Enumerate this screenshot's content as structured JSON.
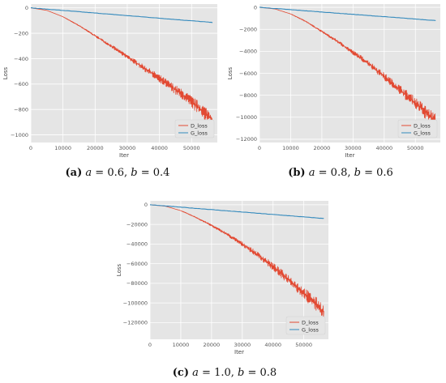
{
  "colors": {
    "d_loss": "#e24a33",
    "g_loss": "#348abd",
    "plot_bg": "#e5e5e5",
    "grid": "#ffffff"
  },
  "captions": [
    {
      "tag": "(a)",
      "a": "a",
      "a_val": "0.6",
      "b": "b",
      "b_val": "0.4"
    },
    {
      "tag": "(b)",
      "a": "a",
      "a_val": "0.8",
      "b": "b",
      "b_val": "0.6"
    },
    {
      "tag": "(c)",
      "a": "a",
      "a_val": "1.0",
      "b": "b",
      "b_val": "0.8"
    }
  ],
  "chart_data": [
    {
      "type": "line",
      "xlabel": "Iter",
      "ylabel": "Loss",
      "xlim": [
        0,
        58000
      ],
      "ylim": [
        -1060,
        30
      ],
      "xticks": [
        0,
        10000,
        20000,
        30000,
        40000,
        50000
      ],
      "yticks": [
        0,
        -200,
        -400,
        -600,
        -800,
        -1000
      ],
      "legend": "lower-right",
      "series": [
        {
          "name": "D_loss",
          "x": [
            0,
            5000,
            10000,
            15000,
            20000,
            25000,
            30000,
            35000,
            40000,
            45000,
            50000,
            55000,
            56500
          ],
          "values": [
            0,
            -20,
            -70,
            -140,
            -220,
            -300,
            -385,
            -470,
            -555,
            -645,
            -740,
            -845,
            -880
          ],
          "noisy": true
        },
        {
          "name": "G_loss",
          "x": [
            0,
            56500
          ],
          "values": [
            0,
            -115
          ],
          "noisy": false
        }
      ]
    },
    {
      "type": "line",
      "xlabel": "Iter",
      "ylabel": "Loss",
      "xlim": [
        0,
        58000
      ],
      "ylim": [
        -12300,
        300
      ],
      "xticks": [
        0,
        10000,
        20000,
        30000,
        40000,
        50000
      ],
      "yticks": [
        0,
        -2000,
        -4000,
        -6000,
        -8000,
        -10000,
        -12000
      ],
      "legend": "lower-right",
      "series": [
        {
          "name": "D_loss",
          "x": [
            0,
            5000,
            10000,
            15000,
            20000,
            25000,
            30000,
            35000,
            40000,
            45000,
            50000,
            55000,
            56500
          ],
          "values": [
            0,
            -150,
            -600,
            -1300,
            -2200,
            -3100,
            -4100,
            -5100,
            -6300,
            -7500,
            -8700,
            -10000,
            -10400
          ],
          "noisy": true
        },
        {
          "name": "G_loss",
          "x": [
            0,
            56500
          ],
          "values": [
            0,
            -1200
          ],
          "noisy": false
        }
      ]
    },
    {
      "type": "line",
      "xlabel": "Iter",
      "ylabel": "Loss",
      "xlim": [
        0,
        58000
      ],
      "ylim": [
        -137000,
        4000
      ],
      "xticks": [
        0,
        10000,
        20000,
        30000,
        40000,
        50000
      ],
      "yticks": [
        0,
        -20000,
        -40000,
        -60000,
        -80000,
        -100000,
        -120000
      ],
      "legend": "lower-right",
      "series": [
        {
          "name": "D_loss",
          "x": [
            0,
            5000,
            10000,
            15000,
            20000,
            25000,
            30000,
            35000,
            40000,
            45000,
            50000,
            55000,
            56500
          ],
          "values": [
            0,
            -1500,
            -6000,
            -13000,
            -21000,
            -30000,
            -40000,
            -51000,
            -63000,
            -76000,
            -90000,
            -104000,
            -110000
          ],
          "noisy": true
        },
        {
          "name": "G_loss",
          "x": [
            0,
            56500
          ],
          "values": [
            0,
            -14000
          ],
          "noisy": false
        }
      ]
    }
  ]
}
